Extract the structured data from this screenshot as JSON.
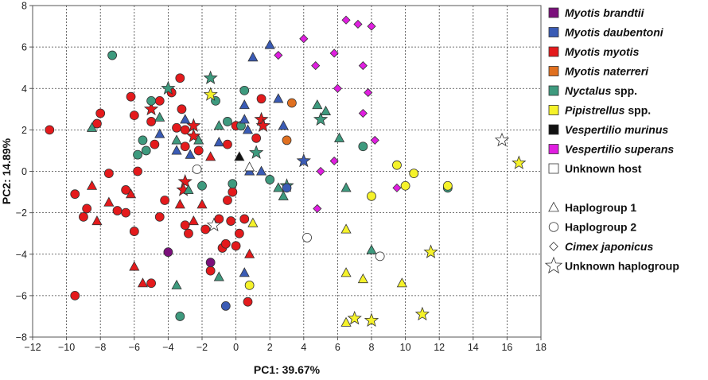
{
  "chart_data": {
    "type": "scatter",
    "xlabel": "PC1: 39.67%",
    "ylabel": "PC2: 14.89%",
    "xlim": [
      -12,
      18
    ],
    "ylim": [
      -8,
      8
    ],
    "xticks": [
      -12,
      -10,
      -8,
      -6,
      -4,
      -2,
      0,
      2,
      4,
      6,
      8,
      10,
      12,
      14,
      16,
      18
    ],
    "yticks": [
      -8,
      -6,
      -4,
      -2,
      0,
      2,
      4,
      6,
      8
    ],
    "grid": "dotted",
    "legend_position": "right",
    "host_legend": [
      {
        "key": "brandtii",
        "label": "Myotis brandtii",
        "italic": true,
        "color": "#7B0F7B"
      },
      {
        "key": "daubentoni",
        "label": "Myotis daubentoni",
        "italic": true,
        "color": "#3A5BB5"
      },
      {
        "key": "myotis",
        "label": "Myotis myotis",
        "italic": true,
        "color": "#E41A1C"
      },
      {
        "key": "naterreri",
        "label": "Myotis naterreri",
        "italic": true,
        "color": "#E07020"
      },
      {
        "key": "nyctalus",
        "label": "Nyctalus",
        "suffix": " spp.",
        "italic": true,
        "color": "#3E9A7E"
      },
      {
        "key": "pipistrellus",
        "label": "Pipistrellus",
        "suffix": " spp.",
        "italic": true,
        "color": "#F5F22A"
      },
      {
        "key": "murinus",
        "label": "Vespertilio murinus",
        "italic": true,
        "color": "#111111"
      },
      {
        "key": "superans",
        "label": "Vespertilio superans",
        "italic": true,
        "color": "#E01EE0"
      },
      {
        "key": "unknown",
        "label": "Unknown host",
        "italic": false,
        "color": "#FFFFFF"
      }
    ],
    "shape_legend": [
      {
        "shape": "triangle",
        "label": "Haplogroup 1",
        "italic": false
      },
      {
        "shape": "circle",
        "label": "Haplogroup 2",
        "italic": false
      },
      {
        "shape": "diamond",
        "label": "Cimex japonicus",
        "italic": true
      },
      {
        "shape": "star",
        "label": "Unknown haplogroup",
        "italic": false
      }
    ],
    "points": [
      {
        "x": -11,
        "y": 2,
        "shape": "circle",
        "host": "myotis"
      },
      {
        "x": -9.5,
        "y": -1.1,
        "shape": "circle",
        "host": "myotis"
      },
      {
        "x": -9.5,
        "y": -6,
        "shape": "circle",
        "host": "myotis"
      },
      {
        "x": -9,
        "y": -2.2,
        "shape": "circle",
        "host": "myotis"
      },
      {
        "x": -8.8,
        "y": -1.8,
        "shape": "circle",
        "host": "myotis"
      },
      {
        "x": -8.5,
        "y": -0.7,
        "shape": "triangle",
        "host": "myotis"
      },
      {
        "x": -8.2,
        "y": -2.4,
        "shape": "triangle",
        "host": "myotis"
      },
      {
        "x": -8,
        "y": 2.8,
        "shape": "circle",
        "host": "myotis"
      },
      {
        "x": -8.2,
        "y": 2.3,
        "shape": "circle",
        "host": "myotis"
      },
      {
        "x": -7.5,
        "y": -0.1,
        "shape": "circle",
        "host": "myotis"
      },
      {
        "x": -7.5,
        "y": -1.5,
        "shape": "triangle",
        "host": "myotis"
      },
      {
        "x": -7,
        "y": -1.9,
        "shape": "circle",
        "host": "myotis"
      },
      {
        "x": -6.5,
        "y": -0.9,
        "shape": "circle",
        "host": "myotis"
      },
      {
        "x": -6.5,
        "y": -2,
        "shape": "circle",
        "host": "myotis"
      },
      {
        "x": -6.2,
        "y": -1.1,
        "shape": "triangle",
        "host": "myotis"
      },
      {
        "x": -6,
        "y": -2.9,
        "shape": "circle",
        "host": "myotis"
      },
      {
        "x": -6,
        "y": -4.6,
        "shape": "triangle",
        "host": "myotis"
      },
      {
        "x": -5.5,
        "y": -5.4,
        "shape": "triangle",
        "host": "myotis"
      },
      {
        "x": -5.8,
        "y": 0,
        "shape": "circle",
        "host": "myotis"
      },
      {
        "x": -6.2,
        "y": 3.6,
        "shape": "circle",
        "host": "myotis"
      },
      {
        "x": -6,
        "y": 2.7,
        "shape": "circle",
        "host": "myotis"
      },
      {
        "x": -5,
        "y": 3,
        "shape": "star",
        "host": "myotis"
      },
      {
        "x": -5,
        "y": 2.4,
        "shape": "circle",
        "host": "myotis"
      },
      {
        "x": -4.5,
        "y": 3.4,
        "shape": "circle",
        "host": "myotis"
      },
      {
        "x": -4.8,
        "y": 1.3,
        "shape": "circle",
        "host": "myotis"
      },
      {
        "x": -4.2,
        "y": -1.4,
        "shape": "circle",
        "host": "myotis"
      },
      {
        "x": -4.5,
        "y": -2.2,
        "shape": "circle",
        "host": "myotis"
      },
      {
        "x": -5,
        "y": -5.4,
        "shape": "circle",
        "host": "myotis"
      },
      {
        "x": -3.8,
        "y": 3.8,
        "shape": "circle",
        "host": "myotis"
      },
      {
        "x": -3.5,
        "y": 2.1,
        "shape": "circle",
        "host": "myotis"
      },
      {
        "x": -3,
        "y": 2,
        "shape": "circle",
        "host": "myotis"
      },
      {
        "x": -3,
        "y": 1.2,
        "shape": "circle",
        "host": "myotis"
      },
      {
        "x": -3.3,
        "y": 4.5,
        "shape": "circle",
        "host": "myotis"
      },
      {
        "x": -3.2,
        "y": 3,
        "shape": "circle",
        "host": "myotis"
      },
      {
        "x": -3,
        "y": -0.5,
        "shape": "star",
        "host": "myotis"
      },
      {
        "x": -3.1,
        "y": -0.9,
        "shape": "star",
        "host": "myotis"
      },
      {
        "x": -3.3,
        "y": -1.6,
        "shape": "triangle",
        "host": "myotis"
      },
      {
        "x": -3,
        "y": -2.6,
        "shape": "circle",
        "host": "myotis"
      },
      {
        "x": -2.8,
        "y": -3,
        "shape": "circle",
        "host": "myotis"
      },
      {
        "x": -2.5,
        "y": -2.4,
        "shape": "triangle",
        "host": "myotis"
      },
      {
        "x": -2.5,
        "y": 2.2,
        "shape": "star",
        "host": "myotis"
      },
      {
        "x": -2.5,
        "y": 1.7,
        "shape": "star",
        "host": "myotis"
      },
      {
        "x": -2.2,
        "y": 1,
        "shape": "circle",
        "host": "myotis"
      },
      {
        "x": -2,
        "y": -1.6,
        "shape": "triangle",
        "host": "myotis"
      },
      {
        "x": -1.8,
        "y": -2.8,
        "shape": "circle",
        "host": "myotis"
      },
      {
        "x": -1.5,
        "y": -4.8,
        "shape": "circle",
        "host": "myotis"
      },
      {
        "x": -1.5,
        "y": 0.7,
        "shape": "triangle",
        "host": "myotis"
      },
      {
        "x": -1,
        "y": -2.3,
        "shape": "circle",
        "host": "myotis"
      },
      {
        "x": -0.8,
        "y": -3.7,
        "shape": "circle",
        "host": "myotis"
      },
      {
        "x": -0.6,
        "y": -3.5,
        "shape": "circle",
        "host": "myotis"
      },
      {
        "x": -0.5,
        "y": -1.4,
        "shape": "circle",
        "host": "myotis"
      },
      {
        "x": -0.3,
        "y": -2.4,
        "shape": "circle",
        "host": "myotis"
      },
      {
        "x": -0.2,
        "y": -1,
        "shape": "circle",
        "host": "myotis"
      },
      {
        "x": 0,
        "y": -3.6,
        "shape": "circle",
        "host": "myotis"
      },
      {
        "x": 0.2,
        "y": -3,
        "shape": "circle",
        "host": "myotis"
      },
      {
        "x": 0.5,
        "y": -2.3,
        "shape": "circle",
        "host": "myotis"
      },
      {
        "x": 0.8,
        "y": -4,
        "shape": "triangle",
        "host": "myotis"
      },
      {
        "x": 0.7,
        "y": -6.3,
        "shape": "circle",
        "host": "myotis"
      },
      {
        "x": -0.5,
        "y": 1.3,
        "shape": "circle",
        "host": "myotis"
      },
      {
        "x": 0,
        "y": 2.2,
        "shape": "circle",
        "host": "myotis"
      },
      {
        "x": 1.2,
        "y": 1.6,
        "shape": "circle",
        "host": "myotis"
      },
      {
        "x": 1.5,
        "y": 3.5,
        "shape": "circle",
        "host": "myotis"
      },
      {
        "x": 1.5,
        "y": 2.5,
        "shape": "star",
        "host": "myotis"
      },
      {
        "x": 1.6,
        "y": 2.2,
        "shape": "star",
        "host": "myotis"
      },
      {
        "x": -7.3,
        "y": 5.6,
        "shape": "circle",
        "host": "nyctalus"
      },
      {
        "x": -8.5,
        "y": 2.1,
        "shape": "triangle",
        "host": "nyctalus"
      },
      {
        "x": -5.8,
        "y": 0.8,
        "shape": "circle",
        "host": "nyctalus"
      },
      {
        "x": -5.5,
        "y": 1.5,
        "shape": "circle",
        "host": "nyctalus"
      },
      {
        "x": -5.3,
        "y": 1,
        "shape": "circle",
        "host": "nyctalus"
      },
      {
        "x": -5,
        "y": 3.4,
        "shape": "circle",
        "host": "nyctalus"
      },
      {
        "x": -4.5,
        "y": 2.6,
        "shape": "triangle",
        "host": "nyctalus"
      },
      {
        "x": -4,
        "y": 4,
        "shape": "star",
        "host": "nyctalus"
      },
      {
        "x": -3.5,
        "y": 1.5,
        "shape": "triangle",
        "host": "nyctalus"
      },
      {
        "x": -3.5,
        "y": -5.5,
        "shape": "triangle",
        "host": "nyctalus"
      },
      {
        "x": -3.3,
        "y": -7,
        "shape": "circle",
        "host": "nyctalus"
      },
      {
        "x": -2.8,
        "y": -0.9,
        "shape": "triangle",
        "host": "nyctalus"
      },
      {
        "x": -2.2,
        "y": 1.5,
        "shape": "triangle",
        "host": "nyctalus"
      },
      {
        "x": -2,
        "y": -0.7,
        "shape": "circle",
        "host": "nyctalus"
      },
      {
        "x": -1.5,
        "y": 4.5,
        "shape": "star",
        "host": "nyctalus"
      },
      {
        "x": -1.2,
        "y": 3.4,
        "shape": "circle",
        "host": "nyctalus"
      },
      {
        "x": -1,
        "y": 2.2,
        "shape": "triangle",
        "host": "nyctalus"
      },
      {
        "x": -0.5,
        "y": 2.4,
        "shape": "circle",
        "host": "nyctalus"
      },
      {
        "x": -0.2,
        "y": -0.6,
        "shape": "circle",
        "host": "nyctalus"
      },
      {
        "x": 0.3,
        "y": 2.2,
        "shape": "circle",
        "host": "nyctalus"
      },
      {
        "x": 0.5,
        "y": 3.9,
        "shape": "circle",
        "host": "nyctalus"
      },
      {
        "x": 1.2,
        "y": 0.9,
        "shape": "star",
        "host": "nyctalus"
      },
      {
        "x": 2,
        "y": -0.4,
        "shape": "circle",
        "host": "nyctalus"
      },
      {
        "x": 2.5,
        "y": -0.8,
        "shape": "triangle",
        "host": "nyctalus"
      },
      {
        "x": 3,
        "y": -0.7,
        "shape": "star",
        "host": "nyctalus"
      },
      {
        "x": 2.8,
        "y": -1.2,
        "shape": "triangle",
        "host": "nyctalus"
      },
      {
        "x": 4.8,
        "y": 3.2,
        "shape": "triangle",
        "host": "nyctalus"
      },
      {
        "x": 5,
        "y": 2.5,
        "shape": "star",
        "host": "nyctalus"
      },
      {
        "x": 5.3,
        "y": 2.9,
        "shape": "triangle",
        "host": "nyctalus"
      },
      {
        "x": 6.1,
        "y": 1.6,
        "shape": "triangle",
        "host": "nyctalus"
      },
      {
        "x": 6.5,
        "y": -0.8,
        "shape": "triangle",
        "host": "nyctalus"
      },
      {
        "x": 7.5,
        "y": 1.2,
        "shape": "circle",
        "host": "nyctalus"
      },
      {
        "x": 8,
        "y": -3.8,
        "shape": "triangle",
        "host": "nyctalus"
      },
      {
        "x": -1,
        "y": -5.1,
        "shape": "triangle",
        "host": "nyctalus"
      },
      {
        "x": 12.5,
        "y": -0.8,
        "shape": "circle",
        "host": "nyctalus"
      },
      {
        "x": -3,
        "y": 2.5,
        "shape": "triangle",
        "host": "daubentoni"
      },
      {
        "x": -4.5,
        "y": 1.8,
        "shape": "triangle",
        "host": "daubentoni"
      },
      {
        "x": -3.5,
        "y": 1,
        "shape": "triangle",
        "host": "daubentoni"
      },
      {
        "x": -2.7,
        "y": 0.8,
        "shape": "triangle",
        "host": "daubentoni"
      },
      {
        "x": -1,
        "y": 1.4,
        "shape": "triangle",
        "host": "daubentoni"
      },
      {
        "x": 0.5,
        "y": 3.2,
        "shape": "triangle",
        "host": "daubentoni"
      },
      {
        "x": 0.5,
        "y": 2.5,
        "shape": "triangle",
        "host": "daubentoni"
      },
      {
        "x": 0.7,
        "y": 2,
        "shape": "triangle",
        "host": "daubentoni"
      },
      {
        "x": 0.8,
        "y": 0,
        "shape": "triangle",
        "host": "daubentoni"
      },
      {
        "x": 1.5,
        "y": 0,
        "shape": "triangle",
        "host": "daubentoni"
      },
      {
        "x": 2.5,
        "y": 3.5,
        "shape": "triangle",
        "host": "daubentoni"
      },
      {
        "x": 2.8,
        "y": 2.2,
        "shape": "triangle",
        "host": "daubentoni"
      },
      {
        "x": 3,
        "y": -0.8,
        "shape": "circle",
        "host": "daubentoni"
      },
      {
        "x": 4,
        "y": 0.5,
        "shape": "star",
        "host": "daubentoni"
      },
      {
        "x": 1,
        "y": 5.5,
        "shape": "triangle",
        "host": "daubentoni"
      },
      {
        "x": 2,
        "y": 6.1,
        "shape": "triangle",
        "host": "daubentoni"
      },
      {
        "x": 0.5,
        "y": -4.9,
        "shape": "triangle",
        "host": "daubentoni"
      },
      {
        "x": -0.6,
        "y": -6.5,
        "shape": "circle",
        "host": "daubentoni"
      },
      {
        "x": -4,
        "y": -3.9,
        "shape": "circle",
        "host": "brandtii"
      },
      {
        "x": -1.5,
        "y": -4.4,
        "shape": "circle",
        "host": "brandtii"
      },
      {
        "x": 3.3,
        "y": 3.3,
        "shape": "circle",
        "host": "naterreri"
      },
      {
        "x": 3,
        "y": 1.5,
        "shape": "circle",
        "host": "naterreri"
      },
      {
        "x": 0.2,
        "y": 0.7,
        "shape": "triangle",
        "host": "murinus"
      },
      {
        "x": -1.5,
        "y": 3.7,
        "shape": "star",
        "host": "pipistrellus"
      },
      {
        "x": 1,
        "y": -2.5,
        "shape": "triangle",
        "host": "pipistrellus"
      },
      {
        "x": 0.8,
        "y": -5.5,
        "shape": "circle",
        "host": "pipistrellus"
      },
      {
        "x": 6.5,
        "y": -4.9,
        "shape": "triangle",
        "host": "pipistrellus"
      },
      {
        "x": 6.5,
        "y": -2.8,
        "shape": "triangle",
        "host": "pipistrellus"
      },
      {
        "x": 6.5,
        "y": -7.3,
        "shape": "triangle",
        "host": "pipistrellus"
      },
      {
        "x": 7,
        "y": -7.1,
        "shape": "star",
        "host": "pipistrellus"
      },
      {
        "x": 7.5,
        "y": -5.2,
        "shape": "triangle",
        "host": "pipistrellus"
      },
      {
        "x": 8,
        "y": -7.2,
        "shape": "star",
        "host": "pipistrellus"
      },
      {
        "x": 8,
        "y": -1.2,
        "shape": "circle",
        "host": "pipistrellus"
      },
      {
        "x": 9.5,
        "y": 0.3,
        "shape": "circle",
        "host": "pipistrellus"
      },
      {
        "x": 10,
        "y": -0.7,
        "shape": "circle",
        "host": "pipistrellus"
      },
      {
        "x": 10.5,
        "y": -0.1,
        "shape": "circle",
        "host": "pipistrellus"
      },
      {
        "x": 9.8,
        "y": -5.4,
        "shape": "triangle",
        "host": "pipistrellus"
      },
      {
        "x": 11,
        "y": -6.9,
        "shape": "star",
        "host": "pipistrellus"
      },
      {
        "x": 11.5,
        "y": -3.9,
        "shape": "star",
        "host": "pipistrellus"
      },
      {
        "x": 12.5,
        "y": -0.7,
        "shape": "circle",
        "host": "pipistrellus"
      },
      {
        "x": 16.7,
        "y": 0.4,
        "shape": "star",
        "host": "pipistrellus"
      },
      {
        "x": 2.5,
        "y": 5.6,
        "shape": "diamond",
        "host": "superans"
      },
      {
        "x": 4,
        "y": 6.4,
        "shape": "diamond",
        "host": "superans"
      },
      {
        "x": 4.7,
        "y": 5.1,
        "shape": "diamond",
        "host": "superans"
      },
      {
        "x": 5.8,
        "y": 5.7,
        "shape": "diamond",
        "host": "superans"
      },
      {
        "x": 6,
        "y": 4,
        "shape": "diamond",
        "host": "superans"
      },
      {
        "x": 6.5,
        "y": 7.3,
        "shape": "diamond",
        "host": "superans"
      },
      {
        "x": 7.2,
        "y": 7.1,
        "shape": "diamond",
        "host": "superans"
      },
      {
        "x": 8,
        "y": 7,
        "shape": "diamond",
        "host": "superans"
      },
      {
        "x": 7.5,
        "y": 5.1,
        "shape": "diamond",
        "host": "superans"
      },
      {
        "x": 7.8,
        "y": 3.8,
        "shape": "diamond",
        "host": "superans"
      },
      {
        "x": 7.5,
        "y": 2.8,
        "shape": "diamond",
        "host": "superans"
      },
      {
        "x": 8.2,
        "y": 1.5,
        "shape": "diamond",
        "host": "superans"
      },
      {
        "x": 5,
        "y": 0,
        "shape": "diamond",
        "host": "superans"
      },
      {
        "x": 5.8,
        "y": 0.5,
        "shape": "diamond",
        "host": "superans"
      },
      {
        "x": 4.8,
        "y": -1.8,
        "shape": "diamond",
        "host": "superans"
      },
      {
        "x": 9.5,
        "y": -0.8,
        "shape": "diamond",
        "host": "superans"
      },
      {
        "x": 0.8,
        "y": 0.2,
        "shape": "triangle",
        "host": "unknown"
      },
      {
        "x": -2.3,
        "y": 0.1,
        "shape": "circle",
        "host": "unknown"
      },
      {
        "x": -1.3,
        "y": -2.6,
        "shape": "star",
        "host": "unknown"
      },
      {
        "x": 4.2,
        "y": -3.2,
        "shape": "circle",
        "host": "unknown"
      },
      {
        "x": 8.5,
        "y": -4.1,
        "shape": "circle",
        "host": "unknown"
      },
      {
        "x": 15.7,
        "y": 1.5,
        "shape": "star",
        "host": "unknown"
      }
    ]
  }
}
